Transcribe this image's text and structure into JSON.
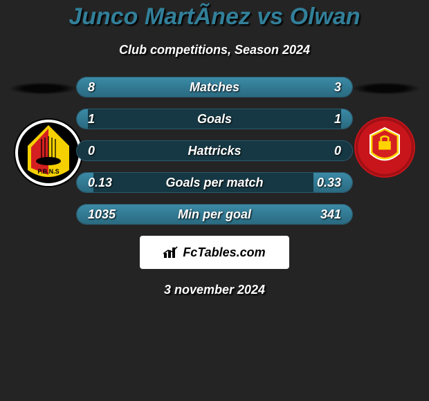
{
  "title": {
    "text": "Junco MartÃ­nez vs Olwan",
    "color": "#327f99",
    "fontsize": 34
  },
  "subtitle": {
    "text": "Club competitions, Season 2024",
    "color": "#ffffff",
    "fontsize": 18
  },
  "date": {
    "text": "3 november 2024",
    "color": "#ffffff"
  },
  "footer": {
    "text": "FcTables.com"
  },
  "palette": {
    "background": "#242424",
    "row_bg": "#163844",
    "row_fill_top": "#3b8aa6",
    "row_fill_bottom": "#2a6a80",
    "row_border": "#2b5a6e",
    "text": "#ffffff",
    "shadow": "#000000"
  },
  "crests": {
    "left": {
      "name": "left-team-crest",
      "primary": "#000000",
      "secondary": "#f4d000",
      "tertiary": "#d42020"
    },
    "right": {
      "name": "right-team-crest",
      "primary": "#c8151b",
      "secondary": "#ffd400",
      "tertiary": "#ffffff"
    }
  },
  "rows": [
    {
      "label": "Matches",
      "left": "8",
      "right": "3",
      "left_pct": 50,
      "right_pct": 50
    },
    {
      "label": "Goals",
      "left": "1",
      "right": "1",
      "left_pct": 4,
      "right_pct": 4
    },
    {
      "label": "Hattricks",
      "left": "0",
      "right": "0",
      "left_pct": 0,
      "right_pct": 0
    },
    {
      "label": "Goals per match",
      "left": "0.13",
      "right": "0.33",
      "left_pct": 6,
      "right_pct": 14
    },
    {
      "label": "Min per goal",
      "left": "1035",
      "right": "341",
      "left_pct": 50,
      "right_pct": 50
    }
  ]
}
